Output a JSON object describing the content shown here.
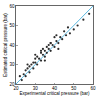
{
  "chart_data": {
    "type": "scatter",
    "x_label": "Experimental critical pressure (bar)",
    "y_label": "Estimated critical pressure (bar)",
    "xlim": [
      20,
      60
    ],
    "ylim": [
      20,
      60
    ],
    "xticks": [
      20,
      30,
      40,
      50,
      60
    ],
    "yticks": [
      20,
      30,
      40,
      50,
      60
    ],
    "grid": false,
    "series": [
      {
        "type": "scatter",
        "marker": "circle",
        "color": "#2b2b2b",
        "x": [
          22,
          23,
          24,
          25,
          25,
          26,
          27,
          27,
          28,
          29,
          30,
          30,
          31,
          31,
          32,
          33,
          33,
          34,
          34,
          35,
          35,
          36,
          36,
          37,
          37,
          38,
          38,
          39,
          40,
          40,
          41,
          41,
          42,
          43,
          44,
          45,
          46,
          47,
          48,
          50,
          52,
          55,
          58,
          30,
          33,
          35,
          38,
          42,
          26,
          29
        ],
        "values": [
          24,
          22,
          25,
          27,
          24,
          28,
          26,
          29,
          30,
          28,
          31,
          33,
          30,
          34,
          33,
          32,
          36,
          35,
          38,
          34,
          37,
          36,
          39,
          38,
          40,
          37,
          41,
          40,
          39,
          44,
          42,
          45,
          41,
          44,
          43,
          47,
          45,
          49,
          46,
          48,
          50,
          53,
          56,
          35,
          37,
          32,
          41,
          38,
          30,
          31
        ]
      },
      {
        "type": "line",
        "line_style": "solid",
        "color": "#5bb8e0",
        "x": [
          20,
          60
        ],
        "values": [
          20,
          60
        ]
      }
    ]
  }
}
